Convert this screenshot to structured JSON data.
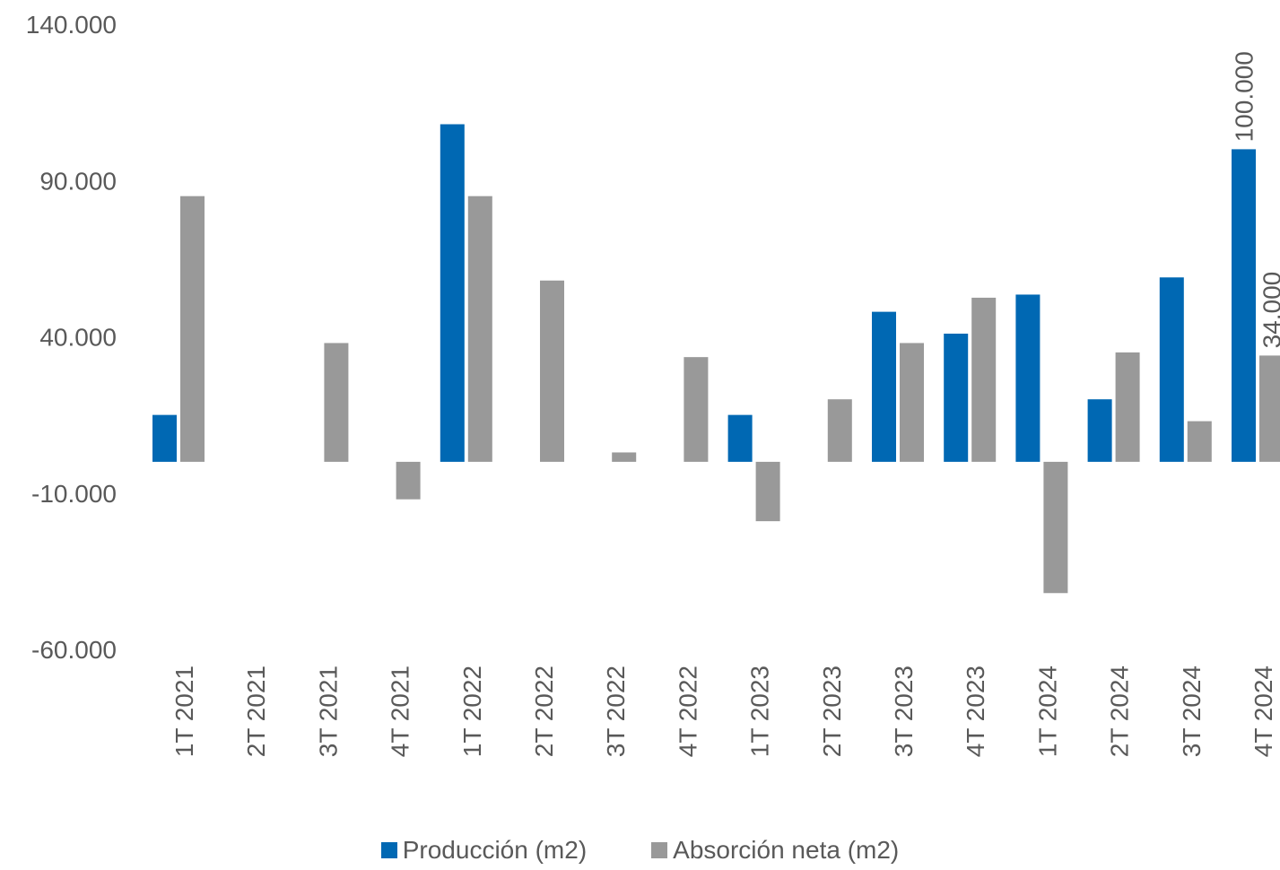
{
  "chart_data": {
    "type": "bar",
    "categories": [
      "1T 2021",
      "2T 2021",
      "3T 2021",
      "4T 2021",
      "1T 2022",
      "2T 2022",
      "3T 2022",
      "4T 2022",
      "1T 2023",
      "2T 2023",
      "3T 2023",
      "4T 2023",
      "1T 2024",
      "2T 2024",
      "3T 2024",
      "4T 2024"
    ],
    "series": [
      {
        "name": "Producción (m2)",
        "color": "#0068B3",
        "values": [
          15000,
          0,
          0,
          0,
          108000,
          0,
          0,
          0,
          15000,
          0,
          48000,
          41000,
          53500,
          20000,
          59000,
          100000
        ]
      },
      {
        "name": "Absorción neta (m2)",
        "color": "#999999",
        "values": [
          85000,
          0,
          38000,
          -12000,
          85000,
          58000,
          3000,
          33500,
          -19000,
          20000,
          38000,
          52500,
          -42000,
          35000,
          13000,
          34000
        ]
      }
    ],
    "ylim": [
      -60000,
      140000
    ],
    "yticks": [
      -60000,
      -10000,
      40000,
      90000,
      140000
    ],
    "ytick_labels": [
      "-60.000",
      "-10.000",
      "40.000",
      "90.000",
      "140.000"
    ],
    "data_labels": [
      {
        "series": 0,
        "index": 15,
        "text": "100.000"
      },
      {
        "series": 1,
        "index": 15,
        "text": "34.000"
      }
    ],
    "legend_position": "bottom",
    "grid": false
  }
}
